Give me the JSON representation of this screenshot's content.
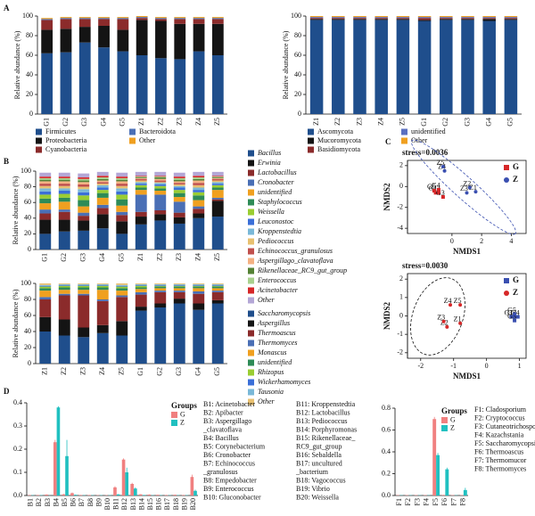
{
  "chart_data": [
    {
      "type": "stacked_bar",
      "label": "A",
      "ylabel": "Relative abundance (%)",
      "categories": [
        "G1",
        "G2",
        "G3",
        "G4",
        "G5",
        "Z1",
        "Z2",
        "Z3",
        "Z4",
        "Z5"
      ],
      "ylim": [
        0,
        100
      ],
      "yticks": [
        0,
        20,
        40,
        60,
        80,
        100
      ],
      "legend": "bottom",
      "series": [
        {
          "name": "Firmicutes",
          "color": "#1f4e8c",
          "values": [
            62,
            63,
            73,
            68,
            64,
            60,
            57,
            56,
            64,
            60
          ]
        },
        {
          "name": "Proteobacteria",
          "color": "#141414",
          "values": [
            24,
            24,
            16,
            22,
            22,
            36,
            38,
            36,
            28,
            32
          ]
        },
        {
          "name": "Cyanobacteria",
          "color": "#8b2b2b",
          "values": [
            10,
            10,
            8,
            7,
            11,
            2,
            2,
            5,
            5,
            5
          ]
        },
        {
          "name": "Bacteroidota",
          "color": "#4a6fb5",
          "values": [
            1,
            1,
            1,
            1,
            1,
            1,
            1,
            1,
            1,
            1
          ]
        },
        {
          "name": "Other",
          "color": "#f0a020",
          "values": [
            1,
            1,
            1,
            1,
            1,
            1,
            1,
            1,
            1,
            1
          ]
        }
      ]
    },
    {
      "type": "stacked_bar",
      "ylabel": "Relative abundance (%)",
      "categories": [
        "Z1",
        "Z2",
        "Z3",
        "Z4",
        "Z5",
        "G1",
        "G2",
        "G3",
        "G4",
        "G5"
      ],
      "ylim": [
        0,
        100
      ],
      "yticks": [
        0,
        20,
        40,
        60,
        80,
        100
      ],
      "legend": "bottom",
      "series": [
        {
          "name": "Ascomycota",
          "color": "#1f4e8c",
          "values": [
            96,
            96,
            96,
            96,
            96,
            95,
            96,
            96,
            95,
            96
          ]
        },
        {
          "name": "Mucoromycota",
          "color": "#141414",
          "values": [
            1,
            1,
            1,
            1,
            1,
            1,
            1,
            1,
            2,
            1
          ]
        },
        {
          "name": "Basidiomycota",
          "color": "#8b2b2b",
          "values": [
            1,
            1,
            1,
            1,
            1,
            2,
            1,
            1,
            1,
            1
          ]
        },
        {
          "name": "unidentified",
          "color": "#5a6fc0",
          "values": [
            1,
            1,
            1,
            1,
            1,
            1,
            1,
            1,
            1,
            1
          ]
        },
        {
          "name": "Other",
          "color": "#f0a020",
          "values": [
            1,
            1,
            1,
            1,
            1,
            1,
            1,
            1,
            1,
            1
          ]
        }
      ]
    },
    {
      "type": "stacked_bar",
      "label": "B",
      "ylabel": "Relative abundance (%)",
      "categories": [
        "G1",
        "G2",
        "G3",
        "G4",
        "G5",
        "Z1",
        "Z2",
        "Z3",
        "Z4",
        "Z5"
      ],
      "ylim": [
        0,
        100
      ],
      "yticks": [
        0,
        20,
        40,
        60,
        80,
        100
      ],
      "legend": "right",
      "series": [
        {
          "name": "Bacillus",
          "color": "#1f4e8c",
          "values": [
            20,
            23,
            24,
            27,
            20,
            32,
            37,
            33,
            40,
            42
          ]
        },
        {
          "name": "Erwinia",
          "color": "#141414",
          "values": [
            18,
            15,
            13,
            18,
            16,
            10,
            8,
            8,
            6,
            20
          ]
        },
        {
          "name": "Lactobacillus",
          "color": "#8b2b2b",
          "values": [
            8,
            10,
            6,
            8,
            8,
            6,
            5,
            6,
            6,
            2
          ]
        },
        {
          "name": "Cronobacter",
          "color": "#4a6fb5",
          "values": [
            5,
            3,
            4,
            4,
            4,
            22,
            20,
            14,
            3,
            2
          ]
        },
        {
          "name": "unidentified",
          "color": "#f0a020",
          "values": [
            8,
            10,
            8,
            9,
            8,
            6,
            5,
            6,
            8,
            10
          ]
        },
        {
          "name": "Staphylococcus",
          "color": "#2e8b57",
          "values": [
            6,
            5,
            8,
            6,
            8,
            3,
            3,
            5,
            6,
            3
          ]
        },
        {
          "name": "Weissella",
          "color": "#9acd32",
          "values": [
            5,
            5,
            6,
            4,
            6,
            3,
            3,
            4,
            4,
            3
          ]
        },
        {
          "name": "Leuconostoc",
          "color": "#3b6fd8",
          "values": [
            4,
            4,
            4,
            3,
            4,
            2,
            2,
            3,
            3,
            2
          ]
        },
        {
          "name": "Kroppenstedtia",
          "color": "#7ab8d8",
          "values": [
            4,
            3,
            4,
            3,
            4,
            2,
            2,
            2,
            3,
            2
          ]
        },
        {
          "name": "Pediococcus",
          "color": "#e8c070",
          "values": [
            3,
            3,
            3,
            2,
            3,
            2,
            1,
            2,
            3,
            2
          ]
        },
        {
          "name": "Echinococcus_granulosus",
          "color": "#c0504d",
          "values": [
            3,
            3,
            3,
            2,
            3,
            2,
            2,
            2,
            3,
            2
          ]
        },
        {
          "name": "Aspergillago_clavatoflava",
          "color": "#f4b183",
          "values": [
            3,
            3,
            3,
            2,
            3,
            1,
            2,
            2,
            3,
            1
          ]
        },
        {
          "name": "Rikenellaceae_RC9_gut_group",
          "color": "#548235",
          "values": [
            2,
            2,
            2,
            2,
            2,
            1,
            2,
            2,
            2,
            1
          ]
        },
        {
          "name": "Enterococcus",
          "color": "#a9d18e",
          "values": [
            2,
            2,
            2,
            2,
            2,
            1,
            1,
            2,
            2,
            1
          ]
        },
        {
          "name": "Acinetobacter",
          "color": "#d62728",
          "values": [
            2,
            2,
            2,
            2,
            2,
            1,
            1,
            2,
            2,
            1
          ]
        },
        {
          "name": "Other",
          "color": "#b4a7d6",
          "values": [
            5,
            5,
            5,
            5,
            5,
            5,
            5,
            5,
            5,
            5
          ]
        }
      ]
    },
    {
      "type": "stacked_bar",
      "ylabel": "Relative abundance (%)",
      "categories": [
        "Z1",
        "Z2",
        "Z3",
        "Z4",
        "Z5",
        "G1",
        "G2",
        "G3",
        "G4",
        "G5"
      ],
      "ylim": [
        0,
        100
      ],
      "yticks": [
        0,
        20,
        40,
        60,
        80,
        100
      ],
      "legend": "right",
      "series": [
        {
          "name": "Saccharomycopsis",
          "color": "#1f4e8c",
          "values": [
            40,
            35,
            33,
            38,
            35,
            66,
            70,
            75,
            67,
            75
          ]
        },
        {
          "name": "Aspergillus",
          "color": "#141414",
          "values": [
            18,
            20,
            12,
            10,
            18,
            5,
            5,
            6,
            8,
            4
          ]
        },
        {
          "name": "Thermoascus",
          "color": "#8b2b2b",
          "values": [
            22,
            30,
            40,
            30,
            30,
            15,
            14,
            8,
            12,
            10
          ]
        },
        {
          "name": "Thermomyces",
          "color": "#4a6fb5",
          "values": [
            3,
            2,
            2,
            2,
            2,
            3,
            2,
            2,
            3,
            2
          ]
        },
        {
          "name": "Monascus",
          "color": "#f0a020",
          "values": [
            8,
            5,
            5,
            12,
            6,
            4,
            3,
            3,
            4,
            3
          ]
        },
        {
          "name": "unidentified",
          "color": "#2e8b57",
          "values": [
            3,
            3,
            3,
            3,
            3,
            2,
            2,
            2,
            2,
            2
          ]
        },
        {
          "name": "Rhizopus",
          "color": "#9acd32",
          "values": [
            2,
            2,
            2,
            2,
            2,
            2,
            1,
            1,
            1,
            1
          ]
        },
        {
          "name": "Wickerhamomyces",
          "color": "#3b6fd8",
          "values": [
            1,
            1,
            1,
            1,
            1,
            1,
            1,
            1,
            1,
            1
          ]
        },
        {
          "name": "Tausonia",
          "color": "#7ab8d8",
          "values": [
            1,
            1,
            1,
            1,
            1,
            1,
            1,
            1,
            1,
            1
          ]
        },
        {
          "name": "Other",
          "color": "#e8c070",
          "values": [
            2,
            1,
            1,
            1,
            2,
            1,
            1,
            1,
            1,
            1
          ]
        }
      ]
    },
    {
      "type": "scatter",
      "label": "C",
      "title": "stress=0.0036",
      "xlabel": "NMDS1",
      "ylabel": "NMDS2",
      "xlim": [
        -3,
        5
      ],
      "xticks": [
        0,
        2,
        4
      ],
      "ylim": [
        -4.5,
        2.5
      ],
      "yticks": [
        -4,
        -2,
        0,
        2
      ],
      "legend": "upper right",
      "series": [
        {
          "name": "G",
          "color": "#d62728",
          "marker": "square",
          "labels": [
            "G1",
            "G2",
            "G3",
            "G4",
            "G5"
          ],
          "x": [
            -1.1,
            -0.9,
            -0.6,
            -0.9,
            -1.2
          ],
          "y": [
            -0.6,
            -0.6,
            -1.0,
            -0.3,
            -0.4
          ]
        },
        {
          "name": "Z",
          "color": "#3a4fb0",
          "marker": "circle",
          "labels": [
            "Z1",
            "Z2",
            "Z3",
            "Z4",
            "Z5"
          ],
          "x": [
            1.6,
            1.2,
            1.0,
            -0.5,
            -0.6
          ],
          "y": [
            -0.5,
            -0.1,
            -0.6,
            1.5,
            1.9
          ]
        }
      ]
    },
    {
      "type": "scatter",
      "title": "stress=0.0030",
      "xlabel": "NMDS1",
      "ylabel": "NMDS2",
      "xlim": [
        -2.4,
        1.2
      ],
      "xticks": [
        -2,
        -1,
        0,
        1
      ],
      "ylim": [
        -2.3,
        2.3
      ],
      "yticks": [
        -2,
        -1,
        0,
        1,
        2
      ],
      "legend": "upper right",
      "series": [
        {
          "name": "G",
          "color": "#3a4fb0",
          "marker": "square",
          "labels": [
            "G1",
            "G2",
            "G3",
            "G4",
            "G5"
          ],
          "x": [
            0.75,
            0.85,
            0.85,
            0.95,
            0.85
          ],
          "y": [
            -0.05,
            -0.05,
            -0.25,
            -0.05,
            0.1
          ]
        },
        {
          "name": "Z",
          "color": "#d62728",
          "marker": "circle",
          "labels": [
            "Z1",
            "Z2",
            "Z3",
            "Z4",
            "Z5"
          ],
          "x": [
            -0.8,
            -1.2,
            -1.3,
            -1.1,
            -0.8
          ],
          "y": [
            -0.4,
            -0.6,
            -0.3,
            0.6,
            0.6
          ]
        }
      ]
    },
    {
      "type": "bar",
      "label": "D",
      "legend_title": "Groups",
      "legend": "upper right",
      "categories": [
        "B1",
        "B2",
        "B3",
        "B4",
        "B5",
        "B6",
        "B7",
        "B8",
        "B9",
        "B10",
        "B11",
        "B12",
        "B13",
        "B14",
        "B15",
        "B16",
        "B17",
        "B18",
        "B19",
        "B20"
      ],
      "ylim": [
        0,
        0.4
      ],
      "yticks": [
        {
          "value": 0,
          "label": "0.0"
        },
        0.1,
        0.2,
        0.3,
        0.4
      ],
      "series": [
        {
          "name": "G",
          "color": "#f08080",
          "values": [
            0.002,
            0.002,
            0.004,
            0.23,
            0.005,
            0.01,
            0.002,
            0.002,
            0.001,
            0.001,
            0.035,
            0.155,
            0.05,
            0.005,
            0.004,
            0.003,
            0.002,
            0.003,
            0.002,
            0.08
          ],
          "errors": [
            0.001,
            0.001,
            0.001,
            0.01,
            0.002,
            0.003,
            0.001,
            0.001,
            0.001,
            0.001,
            0.005,
            0.005,
            0.005,
            0.001,
            0.001,
            0.001,
            0.001,
            0.001,
            0.001,
            0.01
          ]
        },
        {
          "name": "Z",
          "color": "#20c0c0",
          "values": [
            0.001,
            0.001,
            0,
            0.38,
            0.17,
            0.003,
            0.001,
            0.001,
            0.001,
            0.001,
            0.005,
            0.1,
            0.03,
            0.002,
            0.001,
            0.001,
            0.001,
            0.001,
            0.001,
            0.02
          ],
          "errors": [
            0.001,
            0.001,
            0.001,
            0.005,
            0.07,
            0.001,
            0.001,
            0.001,
            0.001,
            0.001,
            0.001,
            0.02,
            0.005,
            0.001,
            0.001,
            0.001,
            0.001,
            0.001,
            0.001,
            0.005
          ]
        }
      ],
      "key": [
        [
          "B1: Acinetobacter",
          "B2: Apibacter",
          "B3: Aspergillago",
          "_clavatoflava",
          "B4: Bacillus",
          "B5: Corynebacterium",
          "B6: Cronobacter",
          "B7: Echinococcus",
          "_granulosus",
          "B8: Empedobacter",
          "B9: Enterococcus",
          "B10: Gluconobacter"
        ],
        [
          "B11: Kroppenstedtia",
          "B12: Lactobacillus",
          "B13: Pediococcus",
          "B14: Porphyromonas",
          "B15: Rikenellaceae_",
          "RC9_gut_group",
          "B16: Sebaldella",
          "B17: uncultured",
          "_bacterium",
          "B18: Vagococcus",
          "B19: Vibrio",
          "B20: Weissella"
        ]
      ]
    },
    {
      "type": "bar",
      "legend_title": "Groups",
      "legend": "upper right",
      "categories": [
        "F1",
        "F2",
        "F3",
        "F4",
        "F5",
        "F6",
        "F7",
        "F8"
      ],
      "ylim": [
        0,
        0.8
      ],
      "yticks": [
        {
          "value": 0,
          "label": "0.0"
        },
        0.2,
        0.4,
        0.6,
        0.8
      ],
      "series": [
        {
          "name": "G",
          "color": "#f08080",
          "values": [
            0.003,
            0.003,
            0.003,
            0.003,
            0.7,
            0.005,
            0.003,
            0.003
          ],
          "errors": [
            0.001,
            0.001,
            0.001,
            0.001,
            0.02,
            0.001,
            0.001,
            0.001
          ]
        },
        {
          "name": "Z",
          "color": "#20c0c0",
          "values": [
            0.002,
            0.002,
            0.002,
            0.002,
            0.37,
            0.24,
            0.002,
            0.05
          ],
          "errors": [
            0.001,
            0.001,
            0.001,
            0.001,
            0.02,
            0.015,
            0.001,
            0.02
          ]
        }
      ],
      "key": [
        [
          "F1: Cladosporium",
          "F2: Cryptococcus",
          "F3: Cutaneotrichosporon",
          "F4: Kazachstania",
          "F5: Saccharomycopsis",
          "F6: Thermoascus",
          "F7: Thermomucor",
          "F8: Thermomyces"
        ]
      ]
    }
  ]
}
